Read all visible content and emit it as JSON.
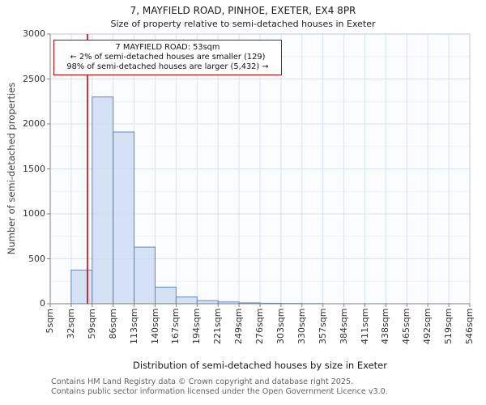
{
  "title": "7, MAYFIELD ROAD, PINHOE, EXETER, EX4 8PR",
  "subtitle": "Size of property relative to semi-detached houses in Exeter",
  "annotation": {
    "line1": "7 MAYFIELD ROAD: 53sqm",
    "line2": "← 2% of semi-detached houses are smaller (129)",
    "line3": "98% of semi-detached houses are larger (5,432) →"
  },
  "footer": {
    "line1": "Contains HM Land Registry data © Crown copyright and database right 2025.",
    "line2": "Contains public sector information licensed under the Open Government Licence v3.0."
  },
  "chart_data": {
    "type": "bar",
    "title": "7, MAYFIELD ROAD, PINHOE, EXETER, EX4 8PR — Size of property relative to semi-detached houses in Exeter",
    "xlabel": "Distribution of semi-detached houses by size in Exeter",
    "ylabel": "Number of semi-detached properties",
    "bin_edges_sqm": [
      5,
      32,
      59,
      86,
      113,
      140,
      167,
      194,
      221,
      249,
      276,
      303,
      330,
      357,
      384,
      411,
      438,
      465,
      492,
      519,
      546
    ],
    "tick_labels": [
      "5sqm",
      "32sqm",
      "59sqm",
      "86sqm",
      "113sqm",
      "140sqm",
      "167sqm",
      "194sqm",
      "221sqm",
      "249sqm",
      "276sqm",
      "303sqm",
      "330sqm",
      "357sqm",
      "384sqm",
      "411sqm",
      "438sqm",
      "465sqm",
      "492sqm",
      "519sqm",
      "546sqm"
    ],
    "values": [
      0,
      375,
      2300,
      1910,
      630,
      185,
      75,
      35,
      20,
      10,
      5,
      3,
      2,
      0,
      0,
      0,
      0,
      0,
      0,
      0
    ],
    "ylim": [
      0,
      3000
    ],
    "ytick_step": 500,
    "marker_sqm": 53,
    "grid": true,
    "legend": "none",
    "colors": {
      "bar_fill": "#ccdaf2",
      "bar_border": "#5f87c7",
      "marker": "#cc0000",
      "grid_major": "#d9e2f2",
      "grid_minor": "#eef2f9",
      "axis": "#808080",
      "plot_border": "#c4cbd6",
      "plot_bg": "#fbfcfe"
    }
  }
}
